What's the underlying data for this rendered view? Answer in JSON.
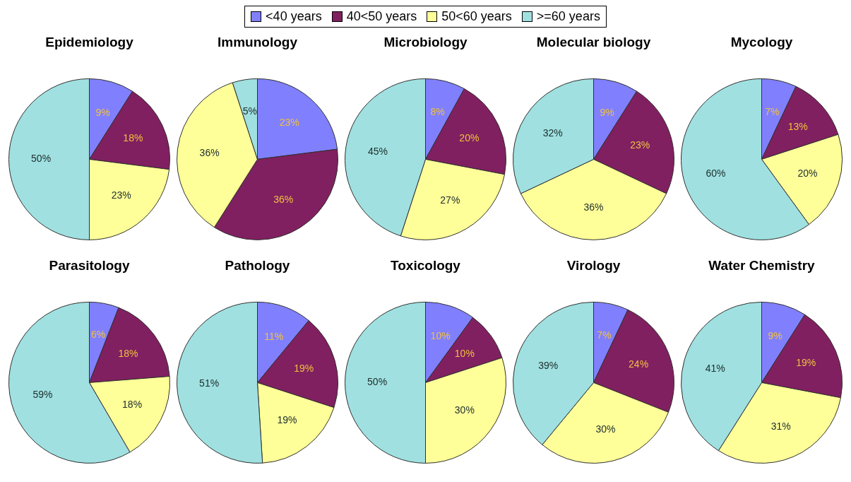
{
  "chart_data": [
    {
      "type": "pie",
      "title": "Epidemiology",
      "legend": "top",
      "categories": [
        "<40 years",
        "40<50 years",
        "50<60 years",
        ">=60 years"
      ],
      "values": [
        9,
        18,
        23,
        50
      ],
      "value_labels": [
        "9%",
        "18%",
        "23%",
        "50%"
      ],
      "colors": [
        "#8080ff",
        "#802060",
        "#ffff99",
        "#a0e0e0"
      ]
    },
    {
      "type": "pie",
      "title": "Immunology",
      "categories": [
        null,
        null,
        null,
        null
      ],
      "values": [
        23,
        36,
        36,
        5
      ],
      "value_labels": [
        "23%",
        "36%",
        "36%",
        "5%"
      ],
      "colors": [
        "#8080ff",
        "#802060",
        "#ffff99",
        "#a0e0e0"
      ]
    },
    {
      "type": "pie",
      "title": "Microbiology",
      "categories": [
        null,
        null,
        null,
        null
      ],
      "values": [
        8,
        20,
        27,
        45
      ],
      "value_labels": [
        "8%",
        "20%",
        "27%",
        "45%"
      ],
      "colors": [
        "#8080ff",
        "#802060",
        "#ffff99",
        "#a0e0e0"
      ]
    },
    {
      "type": "pie",
      "title": "Molecular biology",
      "categories": [
        null,
        null,
        null,
        null
      ],
      "values": [
        9,
        23,
        36,
        32
      ],
      "value_labels": [
        "9%",
        "23%",
        "36%",
        "32%"
      ],
      "colors": [
        "#8080ff",
        "#802060",
        "#ffff99",
        "#a0e0e0"
      ]
    },
    {
      "type": "pie",
      "title": "Mycology",
      "categories": [
        null,
        null,
        null,
        null
      ],
      "values": [
        7,
        13,
        20,
        60
      ],
      "value_labels": [
        "7%",
        "13%",
        "20%",
        "60%"
      ],
      "colors": [
        "#8080ff",
        "#802060",
        "#ffff99",
        "#a0e0e0"
      ]
    },
    {
      "type": "pie",
      "title": "Parasitology",
      "categories": [
        null,
        null,
        null,
        null
      ],
      "values": [
        6,
        18,
        18,
        59
      ],
      "value_labels": [
        "6%",
        "18%",
        "18%",
        "59%"
      ],
      "colors": [
        "#8080ff",
        "#802060",
        "#ffff99",
        "#a0e0e0"
      ]
    },
    {
      "type": "pie",
      "title": "Pathology",
      "categories": [
        null,
        null,
        null,
        null
      ],
      "values": [
        11,
        19,
        19,
        51
      ],
      "value_labels": [
        "11%",
        "19%",
        "19%",
        "51%"
      ],
      "colors": [
        "#8080ff",
        "#802060",
        "#ffff99",
        "#a0e0e0"
      ]
    },
    {
      "type": "pie",
      "title": "Toxicology",
      "categories": [
        null,
        null,
        null,
        null
      ],
      "values": [
        10,
        10,
        30,
        50
      ],
      "value_labels": [
        "10%",
        "10%",
        "30%",
        "50%"
      ],
      "colors": [
        "#8080ff",
        "#802060",
        "#ffff99",
        "#a0e0e0"
      ]
    },
    {
      "type": "pie",
      "title": "Virology",
      "categories": [
        null,
        null,
        null,
        null
      ],
      "values": [
        7,
        24,
        30,
        39
      ],
      "value_labels": [
        "7%",
        "24%",
        "30%",
        "39%"
      ],
      "colors": [
        "#8080ff",
        "#802060",
        "#ffff99",
        "#a0e0e0"
      ]
    },
    {
      "type": "pie",
      "title": "Water Chemistry",
      "categories": [
        null,
        null,
        null,
        null
      ],
      "values": [
        9,
        19,
        31,
        41
      ],
      "value_labels": [
        "9%",
        "19%",
        "31%",
        "41%"
      ],
      "colors": [
        "#8080ff",
        "#802060",
        "#ffff99",
        "#a0e0e0"
      ]
    }
  ]
}
